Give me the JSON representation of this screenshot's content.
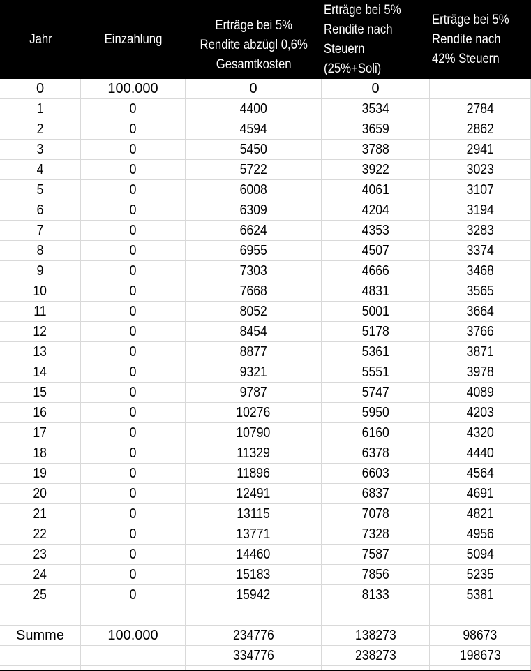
{
  "chart_data": {
    "type": "table",
    "title": "",
    "columns": [
      "Jahr",
      "Einzahlung",
      "Erträge bei 5% Rendite abzügl 0,6% Gesamtkosten",
      "Erträge bei 5% Rendite nach Steuern (25%+Soli)",
      "Erträge bei 5% Rendite nach 42% Steuern"
    ],
    "rows": [
      [
        "0",
        "100.000",
        "0",
        "0",
        ""
      ],
      [
        "1",
        "0",
        "4400",
        "3534",
        "2784"
      ],
      [
        "2",
        "0",
        "4594",
        "3659",
        "2862"
      ],
      [
        "3",
        "0",
        "5450",
        "3788",
        "2941"
      ],
      [
        "4",
        "0",
        "5722",
        "3922",
        "3023"
      ],
      [
        "5",
        "0",
        "6008",
        "4061",
        "3107"
      ],
      [
        "6",
        "0",
        "6309",
        "4204",
        "3194"
      ],
      [
        "7",
        "0",
        "6624",
        "4353",
        "3283"
      ],
      [
        "8",
        "0",
        "6955",
        "4507",
        "3374"
      ],
      [
        "9",
        "0",
        "7303",
        "4666",
        "3468"
      ],
      [
        "10",
        "0",
        "7668",
        "4831",
        "3565"
      ],
      [
        "11",
        "0",
        "8052",
        "5001",
        "3664"
      ],
      [
        "12",
        "0",
        "8454",
        "5178",
        "3766"
      ],
      [
        "13",
        "0",
        "8877",
        "5361",
        "3871"
      ],
      [
        "14",
        "0",
        "9321",
        "5551",
        "3978"
      ],
      [
        "15",
        "0",
        "9787",
        "5747",
        "4089"
      ],
      [
        "16",
        "0",
        "10276",
        "5950",
        "4203"
      ],
      [
        "17",
        "0",
        "10790",
        "6160",
        "4320"
      ],
      [
        "18",
        "0",
        "11329",
        "6378",
        "4440"
      ],
      [
        "19",
        "0",
        "11896",
        "6603",
        "4564"
      ],
      [
        "20",
        "0",
        "12491",
        "6837",
        "4691"
      ],
      [
        "21",
        "0",
        "13115",
        "7078",
        "4821"
      ],
      [
        "22",
        "0",
        "13771",
        "7328",
        "4956"
      ],
      [
        "23",
        "0",
        "14460",
        "7587",
        "5094"
      ],
      [
        "24",
        "0",
        "15183",
        "7856",
        "5235"
      ],
      [
        "25",
        "0",
        "15942",
        "8133",
        "5381"
      ],
      [
        "",
        "",
        "",
        "",
        ""
      ],
      [
        "Summe",
        "100.000",
        "234776",
        "138273",
        "98673"
      ],
      [
        "",
        "",
        "334776",
        "238273",
        "198673"
      ]
    ]
  },
  "display": {
    "header": {
      "col1": "Jahr",
      "col2": "Einzahlung",
      "col3": "Erträge bei 5%\nRendite abzügl 0,6%\nGesamtkosten",
      "col4": "Erträge bei 5%\nRendite nach\nSteuern\n(25%+Soli)",
      "col5": "Erträge bei 5%\nRendite nach\n42% Steuern"
    },
    "wide_font_rows": [
      0
    ],
    "wide_font_cells": [
      [
        27,
        0
      ],
      [
        27,
        1
      ]
    ],
    "colors": {
      "header_bg": "#000000",
      "header_text": "#ffffff",
      "grid_line": "#d9d9d9",
      "body_text": "#000000",
      "bottom_bar": "#000000"
    }
  }
}
